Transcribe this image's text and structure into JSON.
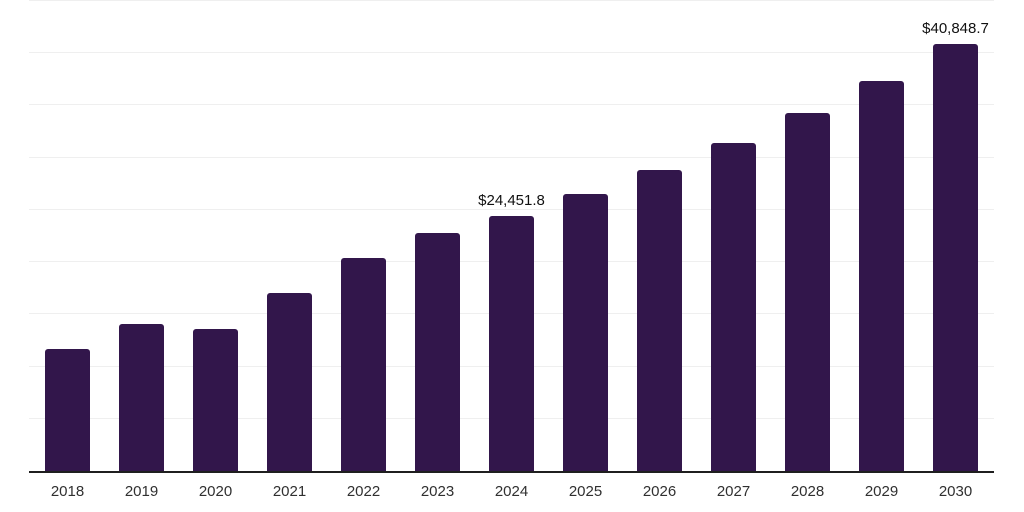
{
  "chart_data": {
    "type": "bar",
    "title": "",
    "xlabel": "",
    "ylabel": "",
    "categories": [
      "2018",
      "2019",
      "2020",
      "2021",
      "2022",
      "2023",
      "2024",
      "2025",
      "2026",
      "2027",
      "2028",
      "2029",
      "2030"
    ],
    "values": [
      11650,
      14070,
      13620,
      17000,
      20360,
      22760,
      24451.8,
      26520,
      28790,
      31380,
      34250,
      37340,
      40848.7
    ],
    "value_labels": [
      "",
      "",
      "",
      "",
      "",
      "",
      "$24,451.8",
      "",
      "",
      "",
      "",
      "",
      "$40,848.7"
    ],
    "ylim": [
      0,
      45000
    ],
    "grid_step": 5000,
    "grid": true,
    "legend": false,
    "colors": {
      "bar": "#32164B",
      "grid": "#efefef",
      "axis": "#1f1f1f",
      "tick_label": "#303030",
      "value_label": "#111111",
      "background": "#ffffff"
    }
  }
}
